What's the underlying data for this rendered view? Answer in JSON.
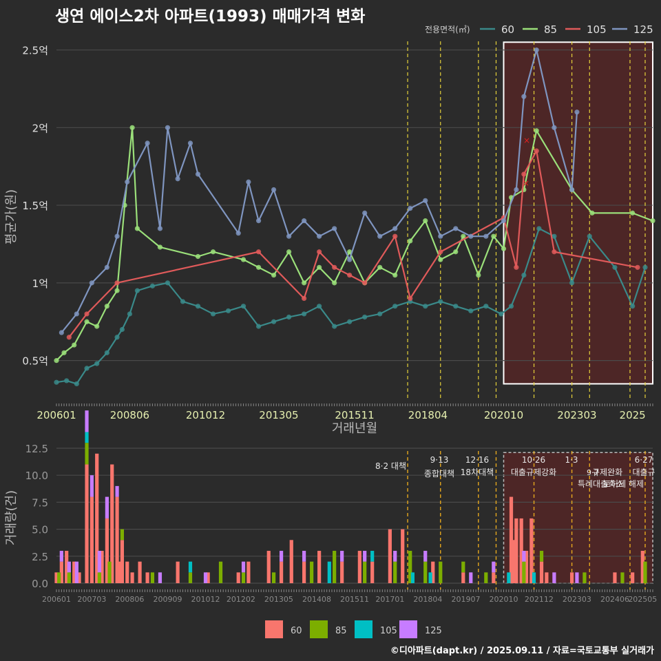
{
  "title": "생연 에이스2차 아파트(1993) 매매가격 변화",
  "footer": "©디아파트(dapt.kr) / 2025.09.11 / 자료=국토교통부 실거래가",
  "colors": {
    "background": "#2b2b2b",
    "grid": "#4a4a4a",
    "policy_line": "#e6d23a",
    "highlight_fill": "#5a2626",
    "line_60": "#3a8a8a",
    "line_85": "#9be07a",
    "line_105": "#e05a5a",
    "line_125": "#7f95c0",
    "bar_60": "#f8766d",
    "bar_85": "#7cae00",
    "bar_105": "#00bfc4",
    "bar_125": "#c77cff"
  },
  "chart_data": [
    {
      "type": "line",
      "title": "생연 에이스2차 아파트(1993) 매매가격 변화",
      "xlabel": "거래년월",
      "ylabel": "평균가(원)",
      "x_tick_labels": [
        "200601",
        "200806",
        "201012",
        "201305",
        "201511",
        "201804",
        "202010",
        "202303",
        "2025"
      ],
      "y_tick_labels": [
        "0.5억",
        "1억",
        "1.5억",
        "2억",
        "2.5억"
      ],
      "y_tick_values": [
        0.5,
        1,
        1.5,
        2,
        2.5
      ],
      "ylim": [
        0.25,
        2.6
      ],
      "xlim": [
        "2006-01",
        "2025-09"
      ],
      "legend_title": "전용면적(㎡)",
      "legend_position": "top-right",
      "highlight_box": {
        "from": "2020-10",
        "to": "2025-09"
      },
      "policy_lines": [
        "2017-08",
        "2018-09",
        "2019-12",
        "2020-07",
        "2021-10",
        "2023-01",
        "2023-08",
        "2024-12",
        "2025-06"
      ],
      "series": [
        {
          "name": "60",
          "color": "#3a8a8a",
          "points": [
            [
              "2006-01",
              0.36
            ],
            [
              "2006-05",
              0.37
            ],
            [
              "2006-09",
              0.35
            ],
            [
              "2007-01",
              0.45
            ],
            [
              "2007-05",
              0.48
            ],
            [
              "2007-09",
              0.55
            ],
            [
              "2008-01",
              0.65
            ],
            [
              "2008-03",
              0.7
            ],
            [
              "2008-06",
              0.8
            ],
            [
              "2008-09",
              0.95
            ],
            [
              "2009-03",
              0.98
            ],
            [
              "2009-09",
              1.0
            ],
            [
              "2010-03",
              0.88
            ],
            [
              "2010-09",
              0.85
            ],
            [
              "2011-03",
              0.8
            ],
            [
              "2011-09",
              0.82
            ],
            [
              "2012-03",
              0.85
            ],
            [
              "2012-09",
              0.72
            ],
            [
              "2013-03",
              0.75
            ],
            [
              "2013-09",
              0.78
            ],
            [
              "2014-03",
              0.8
            ],
            [
              "2014-09",
              0.85
            ],
            [
              "2015-03",
              0.72
            ],
            [
              "2015-09",
              0.75
            ],
            [
              "2016-03",
              0.78
            ],
            [
              "2016-09",
              0.8
            ],
            [
              "2017-03",
              0.85
            ],
            [
              "2017-09",
              0.88
            ],
            [
              "2018-03",
              0.85
            ],
            [
              "2018-09",
              0.88
            ],
            [
              "2019-03",
              0.85
            ],
            [
              "2019-09",
              0.82
            ],
            [
              "2020-03",
              0.85
            ],
            [
              "2020-09",
              0.8
            ],
            [
              "2021-01",
              0.85
            ],
            [
              "2021-06",
              1.05
            ],
            [
              "2021-12",
              1.35
            ],
            [
              "2022-06",
              1.3
            ],
            [
              "2023-01",
              1.0
            ],
            [
              "2023-08",
              1.3
            ],
            [
              "2024-06",
              1.1
            ],
            [
              "2025-01",
              0.85
            ],
            [
              "2025-06",
              1.1
            ]
          ]
        },
        {
          "name": "85",
          "color": "#9be07a",
          "points": [
            [
              "2006-01",
              0.5
            ],
            [
              "2006-04",
              0.55
            ],
            [
              "2006-08",
              0.6
            ],
            [
              "2007-01",
              0.75
            ],
            [
              "2007-05",
              0.72
            ],
            [
              "2007-09",
              0.85
            ],
            [
              "2008-01",
              0.95
            ],
            [
              "2008-04",
              1.5
            ],
            [
              "2008-07",
              2.0
            ],
            [
              "2008-09",
              1.35
            ],
            [
              "2009-06",
              1.23
            ],
            [
              "2010-09",
              1.17
            ],
            [
              "2011-03",
              1.2
            ],
            [
              "2012-03",
              1.15
            ],
            [
              "2012-09",
              1.1
            ],
            [
              "2013-03",
              1.05
            ],
            [
              "2013-09",
              1.2
            ],
            [
              "2014-03",
              1.0
            ],
            [
              "2014-09",
              1.1
            ],
            [
              "2015-03",
              1.0
            ],
            [
              "2015-09",
              1.2
            ],
            [
              "2016-03",
              1.0
            ],
            [
              "2016-09",
              1.1
            ],
            [
              "2017-03",
              1.05
            ],
            [
              "2017-09",
              1.27
            ],
            [
              "2018-03",
              1.4
            ],
            [
              "2018-09",
              1.15
            ],
            [
              "2019-03",
              1.2
            ],
            [
              "2019-06",
              1.3
            ],
            [
              "2019-12",
              1.05
            ],
            [
              "2020-06",
              1.3
            ],
            [
              "2020-10",
              1.22
            ],
            [
              "2021-01",
              1.55
            ],
            [
              "2021-06",
              1.6
            ],
            [
              "2021-11",
              1.98
            ],
            [
              "2023-01",
              1.6
            ],
            [
              "2023-09",
              1.45
            ],
            [
              "2025-01",
              1.45
            ],
            [
              "2025-09",
              1.4
            ]
          ]
        },
        {
          "name": "105",
          "color": "#e05a5a",
          "points": [
            [
              "2006-06",
              0.65
            ],
            [
              "2007-01",
              0.8
            ],
            [
              "2008-01",
              1.0
            ],
            [
              "2012-09",
              1.2
            ],
            [
              "2014-03",
              0.9
            ],
            [
              "2014-09",
              1.2
            ],
            [
              "2015-03",
              1.1
            ],
            [
              "2015-09",
              1.05
            ],
            [
              "2016-03",
              1.0
            ],
            [
              "2017-03",
              1.3
            ],
            [
              "2017-09",
              0.9
            ],
            [
              "2018-09",
              1.2
            ],
            [
              "2020-10",
              1.42
            ],
            [
              "2021-03",
              1.1
            ],
            [
              "2021-06",
              1.7
            ],
            [
              "2021-11",
              1.85
            ],
            [
              "2022-06",
              1.2
            ],
            [
              "2025-03",
              1.1
            ]
          ]
        },
        {
          "name": "125",
          "color": "#7f95c0",
          "points": [
            [
              "2006-03",
              0.68
            ],
            [
              "2006-09",
              0.8
            ],
            [
              "2007-03",
              1.0
            ],
            [
              "2007-09",
              1.1
            ],
            [
              "2008-01",
              1.3
            ],
            [
              "2008-05",
              1.65
            ],
            [
              "2009-01",
              1.9
            ],
            [
              "2009-06",
              1.35
            ],
            [
              "2009-09",
              2.0
            ],
            [
              "2010-01",
              1.67
            ],
            [
              "2010-06",
              1.9
            ],
            [
              "2010-09",
              1.7
            ],
            [
              "2012-01",
              1.32
            ],
            [
              "2012-05",
              1.65
            ],
            [
              "2012-09",
              1.4
            ],
            [
              "2013-03",
              1.6
            ],
            [
              "2013-09",
              1.3
            ],
            [
              "2014-03",
              1.4
            ],
            [
              "2014-09",
              1.3
            ],
            [
              "2015-03",
              1.35
            ],
            [
              "2015-09",
              1.15
            ],
            [
              "2016-03",
              1.45
            ],
            [
              "2016-09",
              1.3
            ],
            [
              "2017-03",
              1.35
            ],
            [
              "2017-09",
              1.48
            ],
            [
              "2018-03",
              1.53
            ],
            [
              "2018-09",
              1.3
            ],
            [
              "2019-03",
              1.35
            ],
            [
              "2019-09",
              1.3
            ],
            [
              "2020-03",
              1.3
            ],
            [
              "2020-10",
              1.4
            ],
            [
              "2021-03",
              1.6
            ],
            [
              "2021-06",
              2.2
            ],
            [
              "2021-11",
              2.5
            ],
            [
              "2022-06",
              2.0
            ],
            [
              "2023-01",
              1.6
            ],
            [
              "2023-03",
              2.1
            ]
          ]
        }
      ]
    },
    {
      "type": "bar",
      "stacked": true,
      "xlabel": "",
      "ylabel": "거래량(건)",
      "x_tick_labels": [
        "200601",
        "200703",
        "200806",
        "200909",
        "201012",
        "201202",
        "201305",
        "201408",
        "201511",
        "201701",
        "201804",
        "201907",
        "202010",
        "202112",
        "202303",
        "202406",
        "202505"
      ],
      "y_tick_labels": [
        "0.0",
        "2.5",
        "5.0",
        "7.5",
        "10.0",
        "12.5"
      ],
      "y_tick_values": [
        0,
        2.5,
        5,
        7.5,
        10,
        12.5
      ],
      "ylim": [
        0,
        12.5
      ],
      "legend_position": "bottom",
      "legend": [
        "60",
        "85",
        "105",
        "125"
      ],
      "annotations": [
        {
          "date": "2017-08",
          "text": "8·2 대책"
        },
        {
          "date": "2018-09",
          "text": "9·13"
        },
        {
          "date": "2018-09",
          "text": "종합대책"
        },
        {
          "date": "2019-12",
          "text": "12·16"
        },
        {
          "date": "2019-12",
          "text": "18차대책"
        },
        {
          "date": "2021-10",
          "text": "10·26"
        },
        {
          "date": "2021-10",
          "text": "대출규제강화"
        },
        {
          "date": "2023-01",
          "text": "1·3"
        },
        {
          "date": "2023-01",
          "text": "규제완화"
        },
        {
          "date": "2023-08",
          "text": "9·7"
        },
        {
          "date": "2023-08",
          "text": "특례대출축소"
        },
        {
          "date": "2024-12",
          "text": "토허제 해제"
        },
        {
          "date": "2025-06",
          "text": "6·27"
        },
        {
          "date": "2025-06",
          "text": "대출규"
        }
      ],
      "series_60": [
        [
          "2006-01",
          1
        ],
        [
          "2006-03",
          2
        ],
        [
          "2006-05",
          3
        ],
        [
          "2006-08",
          2
        ],
        [
          "2006-10",
          1
        ],
        [
          "2007-01",
          11
        ],
        [
          "2007-03",
          8
        ],
        [
          "2007-05",
          12
        ],
        [
          "2007-07",
          3
        ],
        [
          "2007-09",
          6
        ],
        [
          "2007-11",
          11
        ],
        [
          "2008-01",
          8
        ],
        [
          "2008-02",
          2
        ],
        [
          "2008-03",
          4
        ],
        [
          "2008-05",
          2
        ],
        [
          "2008-07",
          1
        ],
        [
          "2008-10",
          2
        ],
        [
          "2009-01",
          1
        ],
        [
          "2010-01",
          2
        ],
        [
          "2011-01",
          1
        ],
        [
          "2012-01",
          1
        ],
        [
          "2012-05",
          2
        ],
        [
          "2013-01",
          3
        ],
        [
          "2013-06",
          2
        ],
        [
          "2013-10",
          4
        ],
        [
          "2014-03",
          2
        ],
        [
          "2014-09",
          3
        ],
        [
          "2015-06",
          2
        ],
        [
          "2016-01",
          3
        ],
        [
          "2016-06",
          2
        ],
        [
          "2017-01",
          5
        ],
        [
          "2017-06",
          5
        ],
        [
          "2018-06",
          2
        ],
        [
          "2019-06",
          1
        ],
        [
          "2020-06",
          1
        ],
        [
          "2021-01",
          8
        ],
        [
          "2021-02",
          4
        ],
        [
          "2021-03",
          6
        ],
        [
          "2021-05",
          6
        ],
        [
          "2021-07",
          3
        ],
        [
          "2021-09",
          6
        ],
        [
          "2022-01",
          2
        ],
        [
          "2022-03",
          1
        ],
        [
          "2023-01",
          1
        ],
        [
          "2024-06",
          1
        ],
        [
          "2025-01",
          1
        ],
        [
          "2025-05",
          3
        ]
      ],
      "series_85": [
        [
          "2006-02",
          1
        ],
        [
          "2006-06",
          1
        ],
        [
          "2007-01",
          2
        ],
        [
          "2007-06",
          1
        ],
        [
          "2007-10",
          2
        ],
        [
          "2008-03",
          1
        ],
        [
          "2009-03",
          1
        ],
        [
          "2010-06",
          1
        ],
        [
          "2011-06",
          2
        ],
        [
          "2012-03",
          1
        ],
        [
          "2013-03",
          1
        ],
        [
          "2014-06",
          2
        ],
        [
          "2015-03",
          3
        ],
        [
          "2016-03",
          2
        ],
        [
          "2017-03",
          2
        ],
        [
          "2017-09",
          3
        ],
        [
          "2018-03",
          2
        ],
        [
          "2018-09",
          2
        ],
        [
          "2019-06",
          1
        ],
        [
          "2020-03",
          1
        ],
        [
          "2021-06",
          2
        ],
        [
          "2022-01",
          1
        ],
        [
          "2023-06",
          1
        ],
        [
          "2024-09",
          1
        ],
        [
          "2025-06",
          2
        ]
      ],
      "series_105": [
        [
          "2007-01",
          1
        ],
        [
          "2010-06",
          1
        ],
        [
          "2015-01",
          2
        ],
        [
          "2016-06",
          1
        ],
        [
          "2017-10",
          1
        ],
        [
          "2018-05",
          1
        ],
        [
          "2020-12",
          1
        ],
        [
          "2021-10",
          1
        ]
      ],
      "series_125": [
        [
          "2006-03",
          1
        ],
        [
          "2006-06",
          1
        ],
        [
          "2006-09",
          2
        ],
        [
          "2007-01",
          2
        ],
        [
          "2007-03",
          2
        ],
        [
          "2007-06",
          2
        ],
        [
          "2007-09",
          2
        ],
        [
          "2008-01",
          1
        ],
        [
          "2009-06",
          1
        ],
        [
          "2010-12",
          1
        ],
        [
          "2012-03",
          1
        ],
        [
          "2013-06",
          1
        ],
        [
          "2014-03",
          1
        ],
        [
          "2015-06",
          1
        ],
        [
          "2016-03",
          1
        ],
        [
          "2017-03",
          1
        ],
        [
          "2018-03",
          1
        ],
        [
          "2019-09",
          1
        ],
        [
          "2020-06",
          1
        ],
        [
          "2021-06",
          1
        ],
        [
          "2022-06",
          1
        ],
        [
          "2023-03",
          1
        ]
      ]
    }
  ]
}
